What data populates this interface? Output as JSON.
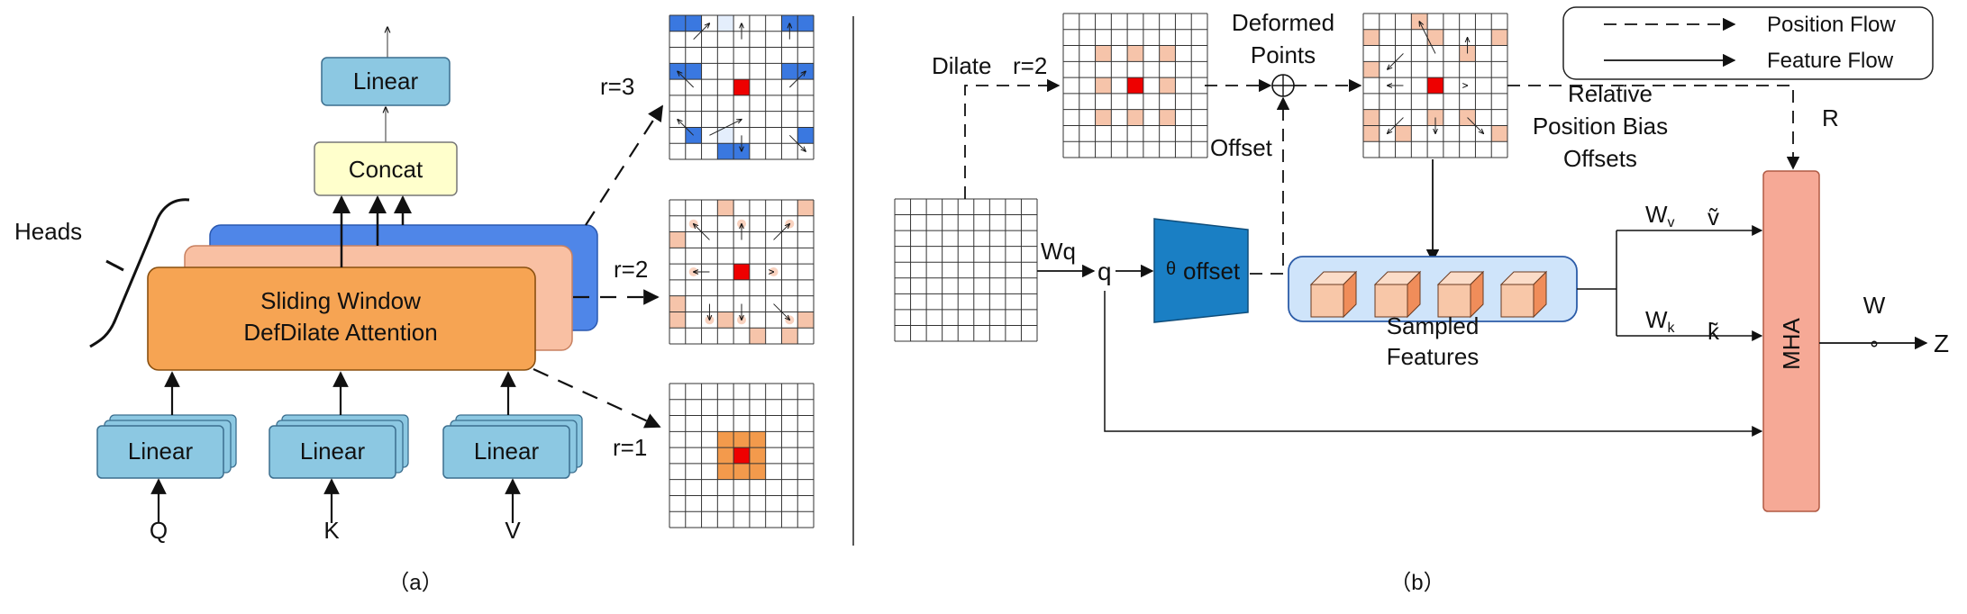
{
  "panel_a": {
    "caption": "（a）",
    "top_linear": "Linear",
    "concat": "Concat",
    "heads_label": "Heads",
    "attention_line1": "Sliding Window",
    "attention_line2": "DefDilate Attention",
    "linear_q": "Linear",
    "linear_k": "Linear",
    "linear_v": "Linear",
    "input_q": "Q",
    "input_k": "K",
    "input_v": "V",
    "r3": "r=3",
    "r2": "r=2",
    "r1": "r=1"
  },
  "panel_b": {
    "caption": "（b）",
    "legend_position": "Position Flow",
    "legend_feature": "Feature Flow",
    "dilate": "Dilate",
    "r2": "r=2",
    "deformed_line1": "Deformed",
    "deformed_line2": "Points",
    "offset_label": "Offset",
    "relpos_line1": "Relative",
    "relpos_line2": "Position Bias",
    "relpos_line3": "Offsets",
    "r_label": "R",
    "wq": "Wq",
    "q": "q",
    "theta": "θ",
    "offset_box": "offset",
    "sampled_line1": "Sampled",
    "sampled_line2": "Features",
    "wv": "W",
    "wv_sub": "v",
    "v_tilde": "ṽ",
    "wk": "W",
    "wk_sub": "k",
    "k_tilde": "k̃",
    "mha": "MHA",
    "w": "W",
    "compose": "∘",
    "z": "Z"
  },
  "colors": {
    "linear_blue": "#8cc8e2",
    "concat_yellow": "#ffffcc",
    "attention_orange": "#f6a453",
    "head_peach": "#f9c0a3",
    "head_blue": "#4f86e8",
    "grid_blue": "#3a78e0",
    "center_red": "#ee0000",
    "light_orange": "#f6c4aa",
    "mha_salmon": "#f6a996",
    "offset_blue": "#1a7fc4",
    "sampled_bg": "#cfe4fa"
  }
}
